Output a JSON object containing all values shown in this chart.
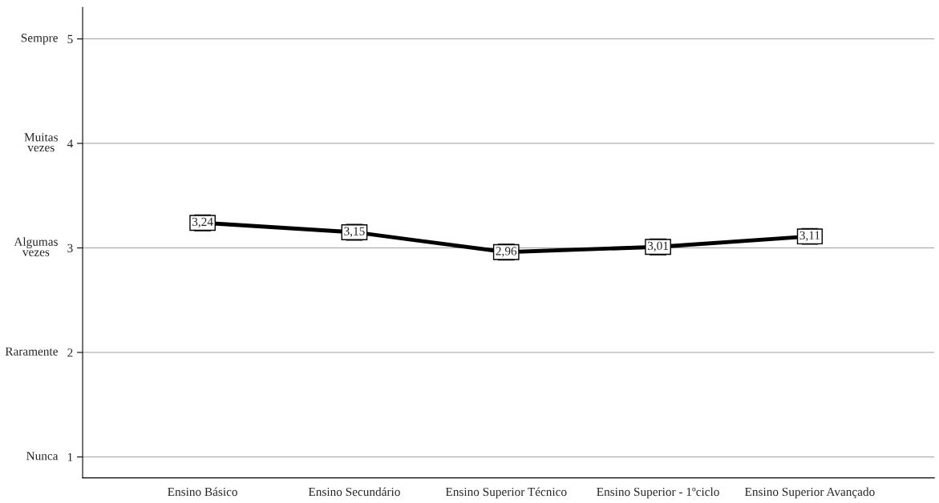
{
  "chart_data": {
    "type": "line",
    "categories": [
      "Ensino Básico",
      "Ensino Secundário",
      "Ensino Superior Técnico",
      "Ensino Superior - 1ºciclo",
      "Ensino Superior Avançado"
    ],
    "series": [
      {
        "color": "#000000",
        "values": [
          3.24,
          3.15,
          2.96,
          3.01,
          3.11
        ],
        "value_labels": [
          "3,24",
          "3,15",
          "2,96",
          "3,01",
          "3,11"
        ]
      }
    ],
    "ylim": [
      0.8,
      5.3
    ],
    "yticks": [
      1,
      2,
      3,
      4,
      5
    ],
    "annotations": [
      "Nunca",
      "Raramente",
      "Algumas\nvezes",
      "Muitas\nvezes",
      "Sempre"
    ],
    "grid": "y",
    "marker": "square",
    "line_style": "solid"
  }
}
